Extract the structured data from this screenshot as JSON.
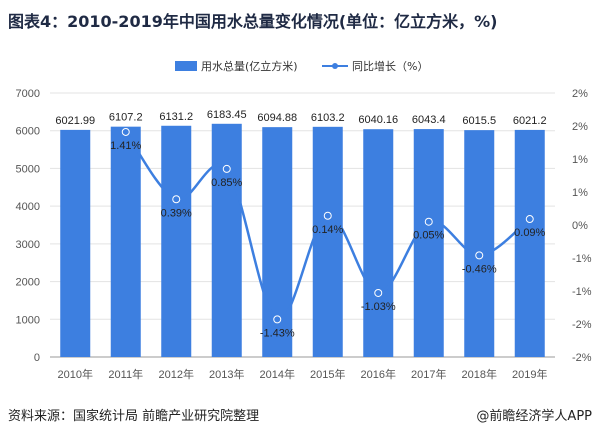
{
  "title": "图表4：2010-2019年中国用水总量变化情况(单位：亿立方米，%)",
  "source": "资料来源：国家统计局 前瞻产业研究院整理",
  "brand": "@前瞻经济学人APP",
  "colors": {
    "bar": "#3d7fe0",
    "line": "#3d7fe0"
  },
  "chart_data": {
    "type": "bar",
    "categories": [
      "2010年",
      "2011年",
      "2012年",
      "2013年",
      "2014年",
      "2015年",
      "2016年",
      "2017年",
      "2018年",
      "2019年"
    ],
    "series": [
      {
        "name": "用水总量(亿立方米)",
        "type": "bar",
        "axis": "left",
        "values": [
          6021.99,
          6107.2,
          6131.2,
          6183.45,
          6094.88,
          6103.2,
          6040.16,
          6043.4,
          6015.5,
          6021.2
        ],
        "labels": [
          "6021.99",
          "6107.2",
          "6131.2",
          "6183.45",
          "6094.88",
          "6103.2",
          "6040.16",
          "6043.4",
          "6015.5",
          "6021.2"
        ]
      },
      {
        "name": "同比增长（%）",
        "type": "line",
        "axis": "right",
        "values": [
          null,
          1.41,
          0.39,
          0.85,
          -1.43,
          0.14,
          -1.03,
          0.05,
          -0.46,
          0.09
        ],
        "labels": [
          "",
          "1.41%",
          "0.39%",
          "0.85%",
          "-1.43%",
          "0.14%",
          "-1.03%",
          "0.05%",
          "-0.46%",
          "0.09%"
        ]
      }
    ],
    "y_left": {
      "min": 0,
      "max": 7000,
      "ticks": [
        "0",
        "1000",
        "2000",
        "3000",
        "4000",
        "5000",
        "6000",
        "7000"
      ]
    },
    "y_right": {
      "min": -2,
      "max": 2,
      "ticks": [
        "-2%",
        "-2%",
        "-1%",
        "-1%",
        "0%",
        "1%",
        "1%",
        "2%",
        "2%"
      ]
    },
    "legend_position": "top-center"
  }
}
